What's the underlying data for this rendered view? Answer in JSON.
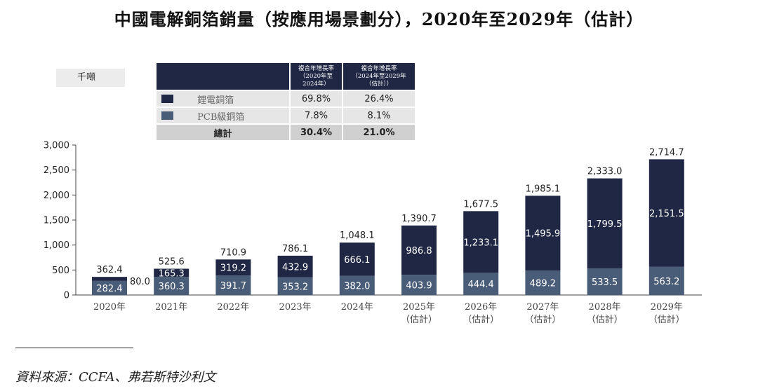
{
  "title": "中國電解銅箔銷量（按應用場景劃分），2020年至2029年（估計）",
  "unit_label": "千噸",
  "cagr_table": {
    "col1": "複合年增長率（2020年至2024年）",
    "col2": "複合年增長率（2024年至2029年（估計））",
    "col1_lines": [
      "複合年增長率",
      "（2020年至",
      "2024年）"
    ],
    "col2_lines": [
      "複合年增長率",
      "（2024年至2029年",
      "（估計））"
    ],
    "rows": [
      {
        "name": "鋰電銅箔",
        "color": "#1f2744",
        "v1": "69.8%",
        "v2": "26.4%"
      },
      {
        "name": "PCB級銅箔",
        "color": "#4a5d78",
        "v1": "7.8%",
        "v2": "8.1%"
      }
    ],
    "total": {
      "name": "總計",
      "v1": "30.4%",
      "v2": "21.0%"
    }
  },
  "chart_data": {
    "type": "bar",
    "stacked": true,
    "categories": [
      "2020年",
      "2021年",
      "2022年",
      "2023年",
      "2024年",
      "2025年\n（估計）",
      "2026年\n（估計）",
      "2027年\n（估計）",
      "2028年\n（估計）",
      "2029年\n（估計）"
    ],
    "series": [
      {
        "name": "PCB級銅箔",
        "color": "#4a5d78",
        "values": [
          282.4,
          360.3,
          391.7,
          353.2,
          382.0,
          403.9,
          444.4,
          489.2,
          533.5,
          563.2
        ],
        "labels": [
          "282.4",
          "360.3",
          "391.7",
          "353.2",
          "382.0",
          "403.9",
          "444.4",
          "489.2",
          "533.5",
          "563.2"
        ]
      },
      {
        "name": "鋰電銅箔",
        "color": "#1f2744",
        "values": [
          80.0,
          165.3,
          319.2,
          432.9,
          666.1,
          986.8,
          1233.1,
          1495.9,
          1799.5,
          2151.5
        ],
        "labels": [
          "80.0",
          "165.3",
          "319.2",
          "432.9",
          "666.1",
          "986.8",
          "1,233.1",
          "1,495.9",
          "1,799.5",
          "2,151.5"
        ]
      }
    ],
    "totals": [
      362.4,
      525.6,
      710.9,
      786.1,
      1048.1,
      1390.7,
      1677.5,
      1985.1,
      2333.0,
      2714.7
    ],
    "total_labels": [
      "362.4",
      "525.6",
      "710.9",
      "786.1",
      "1,048.1",
      "1,390.7",
      "1,677.5",
      "1,985.1",
      "2,333.0",
      "2,714.7"
    ],
    "ylim": [
      0,
      3000
    ],
    "yticks": [
      0,
      500,
      1000,
      1500,
      2000,
      2500,
      3000
    ],
    "ytick_labels": [
      "0",
      "500",
      "1,000",
      "1,500",
      "2,000",
      "2,500",
      "3,000"
    ],
    "xlabel": "",
    "ylabel": "千噸"
  },
  "source": "資料來源：CCFA、弗若斯特沙利文"
}
